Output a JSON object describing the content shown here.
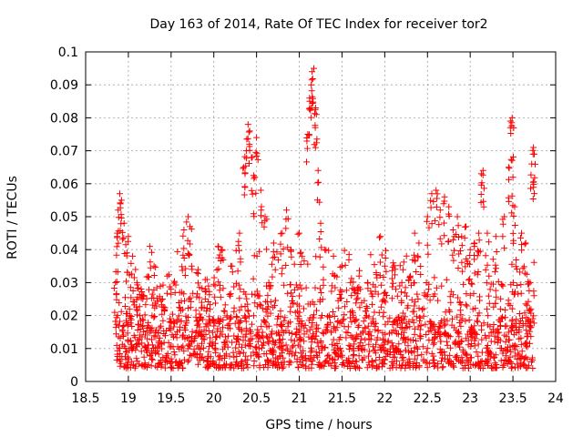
{
  "chart_data": {
    "type": "scatter",
    "title": "Day 163 of 2014, Rate Of TEC Index for receiver tor2",
    "xlabel": "GPS time / hours",
    "ylabel": "ROTI / TECUs",
    "xlim": [
      18.5,
      24
    ],
    "ylim": [
      0,
      0.1
    ],
    "x_ticks": [
      "18.5",
      "19",
      "19.5",
      "20",
      "20.5",
      "21",
      "21.5",
      "22",
      "22.5",
      "23",
      "23.5",
      "24"
    ],
    "y_ticks": [
      "0",
      "0.01",
      "0.02",
      "0.03",
      "0.04",
      "0.05",
      "0.06",
      "0.07",
      "0.08",
      "0.09",
      "0.1"
    ],
    "grid": true,
    "marker": "+",
    "marker_color": "#ff0000",
    "series": [
      {
        "name": "ROTI",
        "x_range": [
          18.85,
          23.75
        ],
        "points": [
          [
            18.85,
            0.03
          ],
          [
            18.87,
            0.045
          ],
          [
            18.88,
            0.052
          ],
          [
            18.9,
            0.057
          ],
          [
            18.92,
            0.055
          ],
          [
            18.95,
            0.048
          ],
          [
            19.0,
            0.044
          ],
          [
            19.05,
            0.038
          ],
          [
            19.1,
            0.03
          ],
          [
            19.15,
            0.028
          ],
          [
            19.25,
            0.041
          ],
          [
            19.3,
            0.035
          ],
          [
            19.4,
            0.025
          ],
          [
            19.5,
            0.028
          ],
          [
            19.6,
            0.027
          ],
          [
            19.65,
            0.046
          ],
          [
            19.7,
            0.05
          ],
          [
            19.72,
            0.047
          ],
          [
            19.8,
            0.033
          ],
          [
            19.9,
            0.028
          ],
          [
            20.05,
            0.041
          ],
          [
            20.1,
            0.04
          ],
          [
            20.2,
            0.035
          ],
          [
            20.3,
            0.045
          ],
          [
            20.35,
            0.065
          ],
          [
            20.38,
            0.07
          ],
          [
            20.4,
            0.078
          ],
          [
            20.42,
            0.076
          ],
          [
            20.45,
            0.068
          ],
          [
            20.48,
            0.062
          ],
          [
            20.5,
            0.074
          ],
          [
            20.55,
            0.058
          ],
          [
            20.6,
            0.05
          ],
          [
            20.7,
            0.042
          ],
          [
            20.8,
            0.045
          ],
          [
            20.85,
            0.052
          ],
          [
            20.9,
            0.04
          ],
          [
            21.0,
            0.045
          ],
          [
            21.1,
            0.075
          ],
          [
            21.12,
            0.086
          ],
          [
            21.14,
            0.09
          ],
          [
            21.15,
            0.094
          ],
          [
            21.17,
            0.095
          ],
          [
            21.19,
            0.083
          ],
          [
            21.2,
            0.081
          ],
          [
            21.22,
            0.064
          ],
          [
            21.25,
            0.048
          ],
          [
            21.3,
            0.04
          ],
          [
            21.4,
            0.038
          ],
          [
            21.5,
            0.035
          ],
          [
            21.6,
            0.03
          ],
          [
            21.7,
            0.032
          ],
          [
            21.8,
            0.03
          ],
          [
            21.9,
            0.033
          ],
          [
            21.95,
            0.044
          ],
          [
            22.0,
            0.035
          ],
          [
            22.1,
            0.036
          ],
          [
            22.2,
            0.03
          ],
          [
            22.3,
            0.032
          ],
          [
            22.35,
            0.045
          ],
          [
            22.4,
            0.042
          ],
          [
            22.5,
            0.05
          ],
          [
            22.55,
            0.057
          ],
          [
            22.6,
            0.058
          ],
          [
            22.65,
            0.052
          ],
          [
            22.7,
            0.056
          ],
          [
            22.75,
            0.053
          ],
          [
            22.8,
            0.046
          ],
          [
            22.85,
            0.05
          ],
          [
            22.9,
            0.044
          ],
          [
            22.95,
            0.047
          ],
          [
            23.0,
            0.04
          ],
          [
            23.05,
            0.042
          ],
          [
            23.1,
            0.045
          ],
          [
            23.13,
            0.063
          ],
          [
            23.15,
            0.064
          ],
          [
            23.2,
            0.045
          ],
          [
            23.3,
            0.044
          ],
          [
            23.4,
            0.05
          ],
          [
            23.45,
            0.065
          ],
          [
            23.47,
            0.079
          ],
          [
            23.49,
            0.08
          ],
          [
            23.5,
            0.062
          ],
          [
            23.52,
            0.053
          ],
          [
            23.6,
            0.045
          ],
          [
            23.65,
            0.042
          ],
          [
            23.7,
            0.03
          ],
          [
            23.72,
            0.066
          ],
          [
            23.74,
            0.071
          ],
          [
            23.75,
            0.069
          ]
        ],
        "bulk_band": [
          0.003,
          0.03
        ],
        "description_counts": 1800
      }
    ]
  }
}
